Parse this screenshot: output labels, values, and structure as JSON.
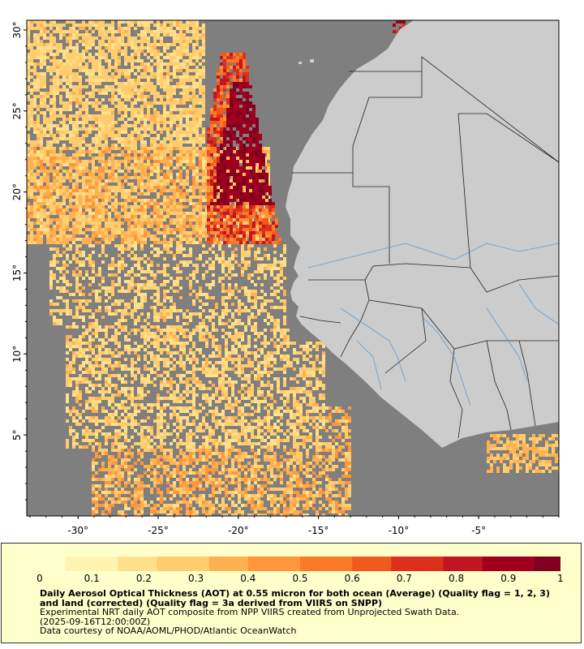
{
  "map": {
    "lat_ticks": [
      "30°",
      "25°",
      "20°",
      "15°",
      "10°",
      "5°"
    ],
    "lon_ticks": [
      "-30°",
      "-25°",
      "-20°",
      "-15°",
      "-10°",
      "-5°"
    ],
    "lat_values": [
      30,
      25,
      20,
      15,
      10,
      5
    ],
    "lon_values": [
      -30,
      -25,
      -20,
      -15,
      -10,
      -5
    ],
    "lon_range": [
      -33.2,
      0
    ],
    "lat_range": [
      0,
      30.6
    ],
    "ocean_color": "#7f7f7f",
    "land_color": "#cccccc",
    "river_color": "#5b9bd5",
    "border_color": "#222222"
  },
  "colorbar": {
    "labels": [
      "0",
      "0.1",
      "0.2",
      "0.3",
      "0.4",
      "0.5",
      "0.6",
      "0.7",
      "0.8",
      "0.9",
      "1"
    ],
    "min": 0,
    "max": 1,
    "colors": [
      "#ffffcc",
      "#fff3b0",
      "#ffe08a",
      "#ffcd6e",
      "#ffb152",
      "#ff963c",
      "#fb7a2a",
      "#f05a1e",
      "#dc2f1c",
      "#c21522",
      "#a0001e",
      "#800020"
    ]
  },
  "caption": {
    "line1": "Daily Aerosol Optical Thickness (AOT) at 0.55 micron for both ocean (Average) (Quality flag = 1, 2, 3) and land (corrected) (Quality flag = 3a derived from VIIRS on SNPP)",
    "line2": "Experimental NRT daily AOT composite from NPP VIIRS created from Unprojected Swath Data.",
    "line3": "(2025-09-16T12:00:00Z)",
    "line4": "Data courtesy of NOAA/AOML/PHOD/Atlantic OceanWatch"
  }
}
